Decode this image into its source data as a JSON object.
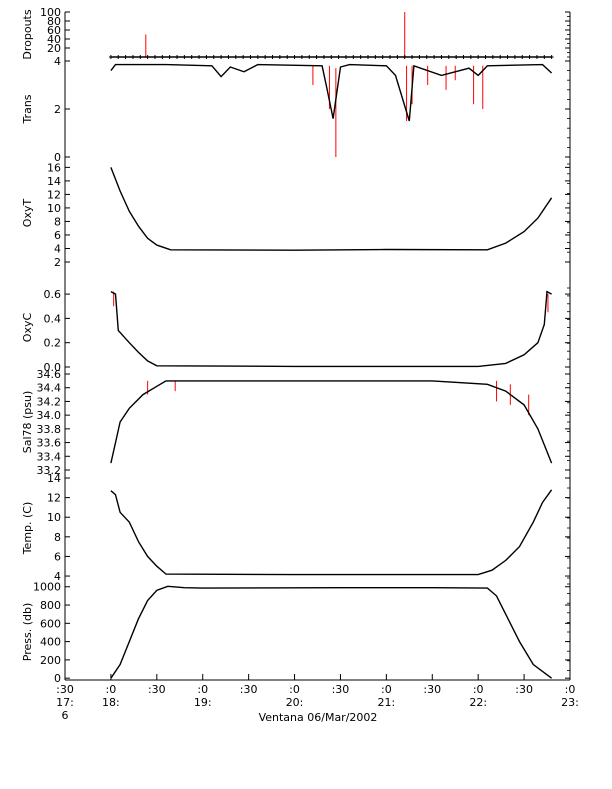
{
  "xlabel": "Ventana 06/Mar/2002",
  "x_ticks": [
    {
      "t": 17.5,
      "line1": ":30",
      "line2": "17:",
      "line3": "6"
    },
    {
      "t": 18.0,
      "line1": ":0",
      "line2": "18:",
      "line3": ""
    },
    {
      "t": 18.5,
      "line1": ":30",
      "line2": "",
      "line3": ""
    },
    {
      "t": 19.0,
      "line1": ":0",
      "line2": "19:",
      "line3": ""
    },
    {
      "t": 19.5,
      "line1": ":30",
      "line2": "",
      "line3": ""
    },
    {
      "t": 20.0,
      "line1": ":0",
      "line2": "20:",
      "line3": ""
    },
    {
      "t": 20.5,
      "line1": ":30",
      "line2": "",
      "line3": ""
    },
    {
      "t": 21.0,
      "line1": ":0",
      "line2": "21:",
      "line3": ""
    },
    {
      "t": 21.5,
      "line1": ":30",
      "line2": "",
      "line3": ""
    },
    {
      "t": 22.0,
      "line1": ":0",
      "line2": "22:",
      "line3": ""
    },
    {
      "t": 22.5,
      "line1": ":30",
      "line2": "",
      "line3": ""
    },
    {
      "t": 23.0,
      "line1": ":0",
      "line2": "23:",
      "line3": ""
    }
  ],
  "colors": {
    "main": "#000000",
    "raw": "#ff0000"
  },
  "chart_data": [
    {
      "type": "line",
      "ylabel": "Dropouts",
      "ylim": [
        0,
        100
      ],
      "ticks": [
        {
          "v": 20,
          "l": "20"
        },
        {
          "v": 40,
          "l": "40"
        },
        {
          "v": 60,
          "l": "60"
        },
        {
          "v": 80,
          "l": "80"
        },
        {
          "v": 100,
          "l": "100"
        }
      ],
      "series": [
        {
          "values": [
            [
              18.0,
              0
            ],
            [
              22.8,
              0
            ]
          ]
        }
      ],
      "spikes": [
        [
          18.38,
          0,
          50
        ],
        [
          21.2,
          0,
          100
        ]
      ],
      "markers": true
    },
    {
      "type": "line",
      "ylabel": "Trans",
      "ylim": [
        0,
        4
      ],
      "ticks": [
        {
          "v": 0,
          "l": "0"
        },
        {
          "v": 2,
          "l": "2"
        },
        {
          "v": 4,
          "l": "4"
        }
      ],
      "series": [
        {
          "values": [
            [
              18.0,
              3.6
            ],
            [
              18.05,
              3.85
            ],
            [
              18.6,
              3.85
            ],
            [
              19.1,
              3.8
            ],
            [
              19.2,
              3.35
            ],
            [
              19.3,
              3.75
            ],
            [
              19.45,
              3.55
            ],
            [
              19.6,
              3.85
            ],
            [
              20.3,
              3.8
            ],
            [
              20.35,
              2.9
            ],
            [
              20.42,
              1.6
            ],
            [
              20.5,
              3.75
            ],
            [
              20.6,
              3.85
            ],
            [
              21.0,
              3.8
            ],
            [
              21.1,
              3.4
            ],
            [
              21.25,
              1.5
            ],
            [
              21.3,
              3.8
            ],
            [
              21.6,
              3.4
            ],
            [
              21.9,
              3.7
            ],
            [
              22.0,
              3.4
            ],
            [
              22.1,
              3.8
            ],
            [
              22.7,
              3.85
            ],
            [
              22.8,
              3.5
            ]
          ]
        }
      ],
      "spikes": [
        [
          20.2,
          3.8,
          3.0
        ],
        [
          20.38,
          3.8,
          2.0
        ],
        [
          20.45,
          3.7,
          0.0
        ],
        [
          21.22,
          3.8,
          1.5
        ],
        [
          21.28,
          3.8,
          2.2
        ],
        [
          21.45,
          3.8,
          3.0
        ],
        [
          21.65,
          3.8,
          2.8
        ],
        [
          21.75,
          3.8,
          3.2
        ],
        [
          21.95,
          3.8,
          2.2
        ],
        [
          22.05,
          3.8,
          2.0
        ]
      ],
      "markers": false
    },
    {
      "type": "line",
      "ylabel": "OxyT",
      "ylim": [
        2,
        16.5
      ],
      "ticks": [
        {
          "v": 2,
          "l": "2"
        },
        {
          "v": 4,
          "l": "4"
        },
        {
          "v": 6,
          "l": "6"
        },
        {
          "v": 8,
          "l": "8"
        },
        {
          "v": 10,
          "l": "10"
        },
        {
          "v": 12,
          "l": "12"
        },
        {
          "v": 14,
          "l": "14"
        },
        {
          "v": 16,
          "l": "16"
        }
      ],
      "series": [
        {
          "values": [
            [
              18.0,
              16.0
            ],
            [
              18.1,
              12.5
            ],
            [
              18.2,
              9.5
            ],
            [
              18.3,
              7.3
            ],
            [
              18.4,
              5.5
            ],
            [
              18.5,
              4.5
            ],
            [
              18.65,
              3.8
            ],
            [
              20.0,
              3.75
            ],
            [
              21.0,
              3.85
            ],
            [
              22.1,
              3.8
            ],
            [
              22.3,
              4.8
            ],
            [
              22.5,
              6.5
            ],
            [
              22.65,
              8.5
            ],
            [
              22.8,
              11.5
            ]
          ]
        }
      ],
      "spikes": [],
      "markers": false
    },
    {
      "type": "line",
      "ylabel": "OxyC",
      "ylim": [
        0,
        0.65
      ],
      "ticks": [
        {
          "v": 0.0,
          "l": "0.0"
        },
        {
          "v": 0.2,
          "l": "0.2"
        },
        {
          "v": 0.4,
          "l": "0.4"
        },
        {
          "v": 0.6,
          "l": "0.6"
        }
      ],
      "series": [
        {
          "values": [
            [
              18.0,
              0.62
            ],
            [
              18.05,
              0.6
            ],
            [
              18.08,
              0.3
            ],
            [
              18.2,
              0.2
            ],
            [
              18.3,
              0.12
            ],
            [
              18.4,
              0.05
            ],
            [
              18.5,
              0.01
            ],
            [
              20.0,
              0.005
            ],
            [
              22.0,
              0.005
            ],
            [
              22.3,
              0.03
            ],
            [
              22.5,
              0.1
            ],
            [
              22.65,
              0.2
            ],
            [
              22.72,
              0.35
            ],
            [
              22.75,
              0.62
            ],
            [
              22.8,
              0.6
            ]
          ]
        }
      ],
      "spikes": [
        [
          18.03,
          0.62,
          0.5
        ],
        [
          22.76,
          0.6,
          0.45
        ]
      ],
      "markers": false
    },
    {
      "type": "line",
      "ylabel": "Sal78 (psu)",
      "ylim": [
        33.2,
        34.6
      ],
      "ticks": [
        {
          "v": 33.2,
          "l": "33.2"
        },
        {
          "v": 33.4,
          "l": "33.4"
        },
        {
          "v": 33.6,
          "l": "33.6"
        },
        {
          "v": 33.8,
          "l": "33.8"
        },
        {
          "v": 34.0,
          "l": "34.0"
        },
        {
          "v": 34.2,
          "l": "34.2"
        },
        {
          "v": 34.4,
          "l": "34.4"
        },
        {
          "v": 34.6,
          "l": "34.6"
        }
      ],
      "series": [
        {
          "values": [
            [
              18.0,
              33.3
            ],
            [
              18.05,
              33.6
            ],
            [
              18.1,
              33.9
            ],
            [
              18.2,
              34.1
            ],
            [
              18.35,
              34.3
            ],
            [
              18.5,
              34.42
            ],
            [
              18.6,
              34.5
            ],
            [
              20.0,
              34.5
            ],
            [
              21.5,
              34.5
            ],
            [
              22.1,
              34.45
            ],
            [
              22.3,
              34.35
            ],
            [
              22.5,
              34.15
            ],
            [
              22.65,
              33.8
            ],
            [
              22.8,
              33.3
            ]
          ]
        }
      ],
      "spikes": [
        [
          18.4,
          34.5,
          34.3
        ],
        [
          18.7,
          34.5,
          34.35
        ],
        [
          22.2,
          34.5,
          34.2
        ],
        [
          22.35,
          34.45,
          34.15
        ],
        [
          22.55,
          34.3,
          34.0
        ]
      ],
      "markers": false
    },
    {
      "type": "line",
      "ylabel": "Temp. (C)",
      "ylim": [
        3.8,
        14
      ],
      "ticks": [
        {
          "v": 4,
          "l": "4"
        },
        {
          "v": 6,
          "l": "6"
        },
        {
          "v": 8,
          "l": "8"
        },
        {
          "v": 10,
          "l": "10"
        },
        {
          "v": 12,
          "l": "12"
        },
        {
          "v": 14,
          "l": "14"
        }
      ],
      "series": [
        {
          "values": [
            [
              18.0,
              12.7
            ],
            [
              18.05,
              12.3
            ],
            [
              18.1,
              10.5
            ],
            [
              18.2,
              9.5
            ],
            [
              18.3,
              7.5
            ],
            [
              18.4,
              6.0
            ],
            [
              18.5,
              5.0
            ],
            [
              18.6,
              4.2
            ],
            [
              20.0,
              4.15
            ],
            [
              22.0,
              4.15
            ],
            [
              22.15,
              4.6
            ],
            [
              22.3,
              5.6
            ],
            [
              22.45,
              7.0
            ],
            [
              22.6,
              9.5
            ],
            [
              22.7,
              11.5
            ],
            [
              22.8,
              12.8
            ]
          ]
        }
      ],
      "spikes": [],
      "markers": false
    },
    {
      "type": "line",
      "ylabel": "Press. (db)",
      "ylim": [
        -20,
        1030
      ],
      "ticks": [
        {
          "v": 0,
          "l": "0"
        },
        {
          "v": 200,
          "l": "200"
        },
        {
          "v": 400,
          "l": "400"
        },
        {
          "v": 600,
          "l": "600"
        },
        {
          "v": 800,
          "l": "800"
        },
        {
          "v": 1000,
          "l": "1000"
        }
      ],
      "series": [
        {
          "values": [
            [
              18.0,
              0
            ],
            [
              18.1,
              150
            ],
            [
              18.2,
              400
            ],
            [
              18.3,
              650
            ],
            [
              18.4,
              850
            ],
            [
              18.5,
              960
            ],
            [
              18.62,
              1005
            ],
            [
              18.8,
              990
            ],
            [
              19.0,
              985
            ],
            [
              20.5,
              990
            ],
            [
              21.5,
              990
            ],
            [
              22.1,
              985
            ],
            [
              22.2,
              900
            ],
            [
              22.3,
              700
            ],
            [
              22.45,
              400
            ],
            [
              22.6,
              150
            ],
            [
              22.8,
              0
            ]
          ]
        }
      ],
      "spikes": [],
      "markers": false
    }
  ]
}
